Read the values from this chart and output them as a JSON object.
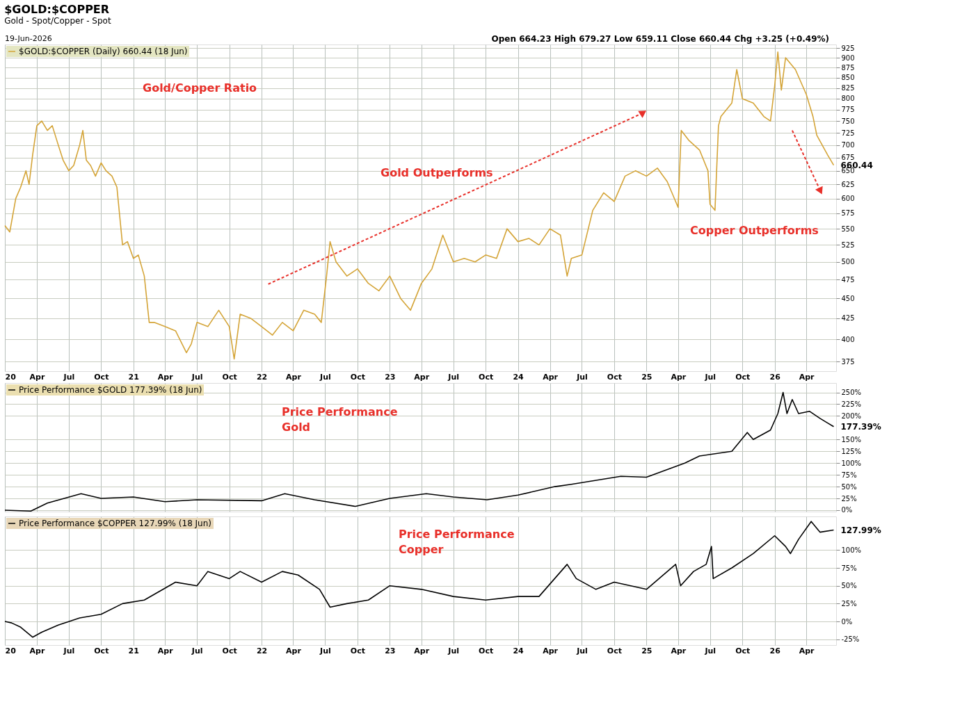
{
  "chart_data": [
    {
      "type": "line",
      "title": "$GOLD:$COPPER",
      "subtitle": "Gold - Spot/Copper - Spot",
      "log": "y",
      "grid": true,
      "legend": "top left",
      "annotations": [
        "19-Jun-2026",
        "Open 664.23 High 679.27 Low 659.11 Close 660.44 Chg +3.25 (+0.49%)",
        "Gold/Copper Ratio",
        "Gold Outperforms",
        "Copper Outperforms",
        {
          "text": "660.44",
          "x": "2026-06-18",
          "y": 660.44
        }
      ],
      "xlim": [
        "2020-01-01",
        "2026-06-25"
      ],
      "xticks": [
        {
          "value": "2020-01-01",
          "label": "20"
        },
        {
          "value": "2020-04-01",
          "label": "Apr"
        },
        {
          "value": "2020-07-01",
          "label": "Jul"
        },
        {
          "value": "2020-10-01",
          "label": "Oct"
        },
        {
          "value": "2021-01-01",
          "label": "21"
        },
        {
          "value": "2021-04-01",
          "label": "Apr"
        },
        {
          "value": "2021-07-01",
          "label": "Jul"
        },
        {
          "value": "2021-10-01",
          "label": "Oct"
        },
        {
          "value": "2022-01-01",
          "label": "22"
        },
        {
          "value": "2022-04-01",
          "label": "Apr"
        },
        {
          "value": "2022-07-01",
          "label": "Jul"
        },
        {
          "value": "2022-10-01",
          "label": "Oct"
        },
        {
          "value": "2023-01-01",
          "label": "23"
        },
        {
          "value": "2023-04-01",
          "label": "Apr"
        },
        {
          "value": "2023-07-01",
          "label": "Jul"
        },
        {
          "value": "2023-10-01",
          "label": "Oct"
        },
        {
          "value": "2024-01-01",
          "label": "24"
        },
        {
          "value": "2024-04-01",
          "label": "Apr"
        },
        {
          "value": "2024-07-01",
          "label": "Jul"
        },
        {
          "value": "2024-10-01",
          "label": "Oct"
        },
        {
          "value": "2025-01-01",
          "label": "25"
        },
        {
          "value": "2025-04-01",
          "label": "Apr"
        },
        {
          "value": "2025-07-01",
          "label": "Jul"
        },
        {
          "value": "2025-10-01",
          "label": "Oct"
        },
        {
          "value": "2026-01-01",
          "label": "26"
        },
        {
          "value": "2026-04-01",
          "label": "Apr"
        }
      ],
      "ylim": [
        365,
        935
      ],
      "yticks": [
        375,
        400,
        425,
        450,
        475,
        500,
        525,
        550,
        575,
        600,
        625,
        650,
        675,
        700,
        725,
        750,
        775,
        800,
        825,
        850,
        875,
        900,
        925
      ],
      "series": [
        {
          "name": "$GOLD:$COPPER (Daily) 660.44 (18 Jun)",
          "color": "#d4a437",
          "x": [
            "2020-01-01",
            "2020-01-15",
            "2020-02-01",
            "2020-02-15",
            "2020-03-01",
            "2020-03-10",
            "2020-03-20",
            "2020-04-01",
            "2020-04-15",
            "2020-05-01",
            "2020-05-15",
            "2020-06-01",
            "2020-06-15",
            "2020-07-01",
            "2020-07-15",
            "2020-08-01",
            "2020-08-10",
            "2020-08-20",
            "2020-09-01",
            "2020-09-15",
            "2020-10-01",
            "2020-10-15",
            "2020-11-01",
            "2020-11-15",
            "2020-12-01",
            "2020-12-15",
            "2021-01-01",
            "2021-01-15",
            "2021-02-01",
            "2021-02-15",
            "2021-03-01",
            "2021-04-01",
            "2021-05-01",
            "2021-06-01",
            "2021-06-15",
            "2021-07-01",
            "2021-08-01",
            "2021-09-01",
            "2021-10-01",
            "2021-10-15",
            "2021-11-01",
            "2021-12-01",
            "2022-01-01",
            "2022-02-01",
            "2022-03-01",
            "2022-04-01",
            "2022-05-01",
            "2022-06-01",
            "2022-06-20",
            "2022-07-05",
            "2022-07-15",
            "2022-08-01",
            "2022-09-01",
            "2022-10-01",
            "2022-11-01",
            "2022-12-01",
            "2023-01-01",
            "2023-02-01",
            "2023-03-01",
            "2023-04-01",
            "2023-05-01",
            "2023-06-01",
            "2023-07-01",
            "2023-08-01",
            "2023-09-01",
            "2023-10-01",
            "2023-11-01",
            "2023-12-01",
            "2024-01-01",
            "2024-02-01",
            "2024-03-01",
            "2024-04-01",
            "2024-05-01",
            "2024-05-20",
            "2024-06-01",
            "2024-07-01",
            "2024-08-01",
            "2024-09-01",
            "2024-10-01",
            "2024-11-01",
            "2024-12-01",
            "2025-01-01",
            "2025-02-01",
            "2025-03-01",
            "2025-04-01",
            "2025-04-10",
            "2025-05-01",
            "2025-06-01",
            "2025-06-25",
            "2025-07-01",
            "2025-07-15",
            "2025-07-25",
            "2025-08-01",
            "2025-09-01",
            "2025-09-15",
            "2025-10-01",
            "2025-11-01",
            "2025-12-01",
            "2025-12-20",
            "2026-01-01",
            "2026-01-10",
            "2026-01-20",
            "2026-02-01",
            "2026-03-01",
            "2026-04-01",
            "2026-04-20",
            "2026-05-01",
            "2026-06-01",
            "2026-06-18"
          ],
          "values": [
            555,
            545,
            600,
            620,
            650,
            625,
            680,
            740,
            750,
            730,
            740,
            700,
            670,
            650,
            660,
            700,
            730,
            670,
            660,
            640,
            665,
            650,
            640,
            620,
            525,
            530,
            505,
            510,
            480,
            420,
            420,
            415,
            410,
            385,
            395,
            420,
            415,
            435,
            415,
            378,
            430,
            425,
            415,
            405,
            420,
            410,
            435,
            430,
            420,
            480,
            530,
            500,
            480,
            490,
            470,
            460,
            480,
            450,
            435,
            470,
            490,
            540,
            500,
            505,
            500,
            510,
            505,
            550,
            530,
            535,
            525,
            550,
            540,
            480,
            505,
            510,
            580,
            610,
            595,
            640,
            650,
            640,
            655,
            630,
            585,
            730,
            710,
            690,
            650,
            590,
            580,
            740,
            760,
            790,
            870,
            800,
            790,
            760,
            750,
            830,
            915,
            820,
            900,
            870,
            810,
            760,
            720,
            680,
            660.44
          ]
        }
      ]
    },
    {
      "type": "line",
      "grid": true,
      "legend": "top left",
      "tick_labels": "y",
      "annotations": [
        "Price Performance\nGold",
        {
          "text": "177.39%",
          "x": "2026-06-18",
          "y": 177.39
        }
      ],
      "xlim": [
        "2020-01-01",
        "2026-06-25"
      ],
      "xticks": [
        {
          "value": "2020-01-01",
          "label": null
        },
        {
          "value": "2020-04-01",
          "label": null
        },
        {
          "value": "2020-07-01",
          "label": null
        },
        {
          "value": "2020-10-01",
          "label": null
        },
        {
          "value": "2021-01-01",
          "label": null
        },
        {
          "value": "2021-04-01",
          "label": null
        },
        {
          "value": "2021-07-01",
          "label": null
        },
        {
          "value": "2021-10-01",
          "label": null
        },
        {
          "value": "2022-01-01",
          "label": null
        },
        {
          "value": "2022-04-01",
          "label": null
        },
        {
          "value": "2022-07-01",
          "label": null
        },
        {
          "value": "2022-10-01",
          "label": null
        },
        {
          "value": "2023-01-01",
          "label": null
        },
        {
          "value": "2023-04-01",
          "label": null
        },
        {
          "value": "2023-07-01",
          "label": null
        },
        {
          "value": "2023-10-01",
          "label": null
        },
        {
          "value": "2024-01-01",
          "label": null
        },
        {
          "value": "2024-04-01",
          "label": null
        },
        {
          "value": "2024-07-01",
          "label": null
        },
        {
          "value": "2024-10-01",
          "label": null
        },
        {
          "value": "2025-01-01",
          "label": null
        },
        {
          "value": "2025-04-01",
          "label": null
        },
        {
          "value": "2025-07-01",
          "label": null
        },
        {
          "value": "2025-10-01",
          "label": null
        },
        {
          "value": "2026-01-01",
          "label": null
        },
        {
          "value": "2026-04-01",
          "label": null
        }
      ],
      "ylim": [
        -3,
        270
      ],
      "yticks": [
        {
          "value": 0,
          "label": "0%"
        },
        {
          "value": 25,
          "label": "25%"
        },
        {
          "value": 50,
          "label": "50%"
        },
        {
          "value": 75,
          "label": "75%"
        },
        {
          "value": 100,
          "label": "100%"
        },
        {
          "value": 125,
          "label": "125%"
        },
        {
          "value": 150,
          "label": "150%"
        },
        {
          "value": 200,
          "label": "200%"
        },
        {
          "value": 225,
          "label": "225%"
        },
        {
          "value": 250,
          "label": "250%"
        }
      ],
      "series": [
        {
          "name": "Price Performance $GOLD 177.39% (18 Jun)",
          "color": "#000000",
          "x": [
            "2020-01-01",
            "2020-03-15",
            "2020-05-01",
            "2020-08-05",
            "2020-10-01",
            "2021-01-01",
            "2021-04-01",
            "2021-07-01",
            "2022-01-01",
            "2022-03-08",
            "2022-06-01",
            "2022-09-25",
            "2023-01-01",
            "2023-04-15",
            "2023-07-01",
            "2023-10-05",
            "2024-01-01",
            "2024-04-15",
            "2024-06-01",
            "2024-10-20",
            "2025-01-01",
            "2025-04-20",
            "2025-06-01",
            "2025-09-01",
            "2025-10-15",
            "2025-11-01",
            "2025-12-20",
            "2026-01-10",
            "2026-01-25",
            "2026-02-05",
            "2026-02-20",
            "2026-03-10",
            "2026-04-10",
            "2026-05-10",
            "2026-06-01",
            "2026-06-18"
          ],
          "values": [
            0,
            -2,
            15,
            35,
            25,
            28,
            18,
            22,
            20,
            35,
            22,
            8,
            25,
            35,
            28,
            22,
            32,
            50,
            55,
            72,
            70,
            100,
            115,
            125,
            165,
            150,
            170,
            205,
            250,
            205,
            235,
            205,
            210,
            195,
            185,
            177.39
          ]
        }
      ]
    },
    {
      "type": "line",
      "grid": true,
      "legend": "top left",
      "annotations": [
        "Price Performance\nCopper",
        {
          "text": "127.99%",
          "x": "2026-06-18",
          "y": 127.99
        }
      ],
      "xlim": [
        "2020-01-01",
        "2026-06-25"
      ],
      "xticks": [
        {
          "value": "2020-01-01",
          "label": "20"
        },
        {
          "value": "2020-04-01",
          "label": "Apr"
        },
        {
          "value": "2020-07-01",
          "label": "Jul"
        },
        {
          "value": "2020-10-01",
          "label": "Oct"
        },
        {
          "value": "2021-01-01",
          "label": "21"
        },
        {
          "value": "2021-04-01",
          "label": "Apr"
        },
        {
          "value": "2021-07-01",
          "label": "Jul"
        },
        {
          "value": "2021-10-01",
          "label": "Oct"
        },
        {
          "value": "2022-01-01",
          "label": "22"
        },
        {
          "value": "2022-04-01",
          "label": "Apr"
        },
        {
          "value": "2022-07-01",
          "label": "Jul"
        },
        {
          "value": "2022-10-01",
          "label": "Oct"
        },
        {
          "value": "2023-01-01",
          "label": "23"
        },
        {
          "value": "2023-04-01",
          "label": "Apr"
        },
        {
          "value": "2023-07-01",
          "label": "Jul"
        },
        {
          "value": "2023-10-01",
          "label": "Oct"
        },
        {
          "value": "2024-01-01",
          "label": "24"
        },
        {
          "value": "2024-04-01",
          "label": "Apr"
        },
        {
          "value": "2024-07-01",
          "label": "Jul"
        },
        {
          "value": "2024-10-01",
          "label": "Oct"
        },
        {
          "value": "2025-01-01",
          "label": "25"
        },
        {
          "value": "2025-04-01",
          "label": "Apr"
        },
        {
          "value": "2025-07-01",
          "label": "Jul"
        },
        {
          "value": "2025-10-01",
          "label": "Oct"
        },
        {
          "value": "2026-01-01",
          "label": "26"
        },
        {
          "value": "2026-04-01",
          "label": "Apr"
        }
      ],
      "ylim": [
        -33,
        147
      ],
      "yticks": [
        {
          "value": -25,
          "label": "-25%"
        },
        {
          "value": 0,
          "label": "0%"
        },
        {
          "value": 25,
          "label": "25%"
        },
        {
          "value": 50,
          "label": "50%"
        },
        {
          "value": 75,
          "label": "75%"
        },
        {
          "value": 100,
          "label": "100%"
        }
      ],
      "series": [
        {
          "name": "Price Performance $COPPER 127.99% (18 Jun)",
          "color": "#000000",
          "x": [
            "2020-01-01",
            "2020-01-20",
            "2020-02-15",
            "2020-03-20",
            "2020-04-15",
            "2020-06-01",
            "2020-08-01",
            "2020-10-01",
            "2020-12-01",
            "2021-02-01",
            "2021-05-01",
            "2021-07-01",
            "2021-08-01",
            "2021-10-01",
            "2021-11-01",
            "2022-01-01",
            "2022-03-01",
            "2022-04-15",
            "2022-06-15",
            "2022-07-15",
            "2022-09-01",
            "2022-11-01",
            "2023-01-01",
            "2023-04-01",
            "2023-07-01",
            "2023-10-01",
            "2024-01-01",
            "2024-03-01",
            "2024-05-20",
            "2024-06-15",
            "2024-08-10",
            "2024-10-01",
            "2025-01-01",
            "2025-03-25",
            "2025-04-08",
            "2025-05-15",
            "2025-06-20",
            "2025-07-05",
            "2025-07-10",
            "2025-09-01",
            "2025-11-01",
            "2026-01-01",
            "2026-02-01",
            "2026-02-15",
            "2026-03-10",
            "2026-04-15",
            "2026-05-10",
            "2026-06-18"
          ],
          "values": [
            0,
            -2,
            -8,
            -22,
            -15,
            -5,
            5,
            10,
            25,
            30,
            55,
            50,
            70,
            60,
            70,
            55,
            70,
            65,
            45,
            20,
            25,
            30,
            50,
            45,
            35,
            30,
            35,
            35,
            80,
            60,
            45,
            55,
            45,
            80,
            50,
            70,
            80,
            105,
            60,
            75,
            95,
            120,
            105,
            95,
            115,
            140,
            125,
            127.99
          ]
        }
      ]
    }
  ]
}
